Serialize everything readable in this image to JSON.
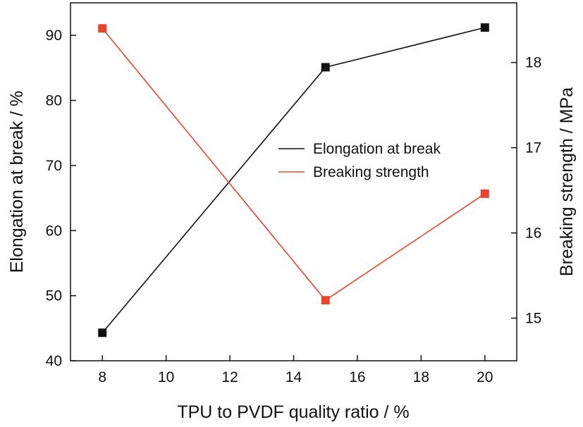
{
  "chart_data": {
    "type": "line",
    "xlabel": "TPU to PVDF quality ratio / %",
    "ylabel_left": "Elongation at break / %",
    "ylabel_right": "Breaking strength / MPa",
    "xlim": [
      7,
      21
    ],
    "ylim_left": [
      40,
      95
    ],
    "ylim_right": [
      14.5,
      18.7
    ],
    "x_ticks": [
      8,
      10,
      12,
      14,
      16,
      18,
      20
    ],
    "y_ticks_left": [
      40,
      50,
      60,
      70,
      80,
      90
    ],
    "y_ticks_right": [
      15,
      16,
      17,
      18
    ],
    "grid": false,
    "legend_position": "center-right",
    "series": [
      {
        "name": "Elongation at break",
        "axis": "left",
        "color": "#111111",
        "marker": "square",
        "x": [
          8,
          15,
          20
        ],
        "y": [
          44.3,
          85.1,
          91.2
        ]
      },
      {
        "name": "Breaking strength",
        "axis": "right",
        "color": "#e8452c",
        "marker": "square",
        "x": [
          8,
          15,
          20
        ],
        "y": [
          18.4,
          15.21,
          16.46
        ]
      }
    ]
  }
}
